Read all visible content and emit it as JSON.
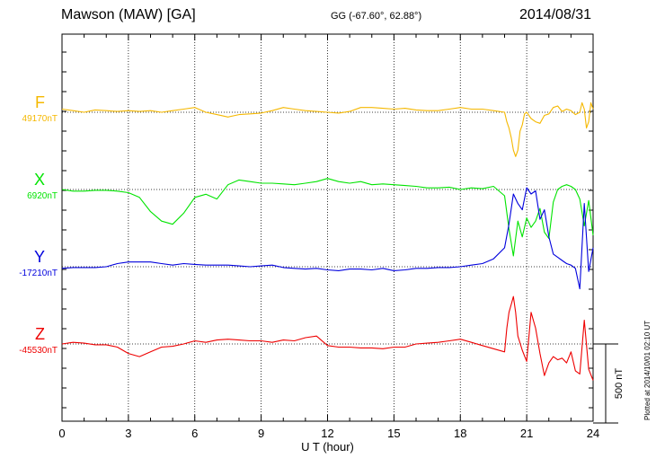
{
  "header": {
    "station": "Mawson (MAW)  [GA]",
    "coords": "GG (-67.60°,  62.88°)",
    "date": "2014/08/31"
  },
  "plotted_note": "Plotted at 2014/10/01 02:10 UT",
  "chart_data": {
    "type": "line",
    "title": "Mawson (MAW)  [GA]",
    "xlabel": "U T (hour)",
    "xlim": [
      0,
      24
    ],
    "xticks": [
      "0",
      "3",
      "6",
      "9",
      "12",
      "15",
      "18",
      "21",
      "24"
    ],
    "scale_bar_label": "500 nT",
    "scale_bar_nT": 500,
    "grid": true,
    "series": [
      {
        "name": "F",
        "baseline_label": "49170nT",
        "baseline_nT": 49170,
        "color": "#f5b800",
        "unit": "nT deviation from baseline",
        "x": [
          0,
          0.5,
          1,
          1.5,
          2,
          2.5,
          3,
          3.5,
          4,
          4.5,
          5,
          5.5,
          6,
          6.5,
          7,
          7.5,
          8,
          8.5,
          9,
          9.5,
          10,
          10.5,
          11,
          11.5,
          12,
          12.5,
          13,
          13.5,
          14,
          14.5,
          15,
          15.5,
          16,
          16.5,
          17,
          17.5,
          18,
          18.5,
          19,
          19.5,
          20,
          20.1,
          20.2,
          20.3,
          20.4,
          20.5,
          20.6,
          20.7,
          20.8,
          20.9,
          21,
          21.2,
          21.4,
          21.6,
          21.8,
          22,
          22.2,
          22.4,
          22.6,
          22.8,
          23,
          23.2,
          23.4,
          23.5,
          23.6,
          23.7,
          23.8,
          23.9,
          24
        ],
        "y": [
          20,
          10,
          0,
          15,
          10,
          5,
          10,
          5,
          10,
          0,
          10,
          20,
          30,
          0,
          -15,
          -30,
          -15,
          -10,
          -5,
          10,
          30,
          20,
          10,
          5,
          0,
          -5,
          5,
          30,
          30,
          25,
          20,
          25,
          15,
          10,
          10,
          20,
          30,
          20,
          20,
          10,
          0,
          -60,
          -100,
          -160,
          -240,
          -280,
          -240,
          -120,
          -80,
          -10,
          0,
          -40,
          -60,
          -70,
          -20,
          -10,
          30,
          40,
          5,
          20,
          10,
          -15,
          0,
          60,
          20,
          -100,
          -60,
          60,
          20
        ]
      },
      {
        "name": "X",
        "baseline_label": "6920nT",
        "baseline_nT": 6920,
        "color": "#00e400",
        "unit": "nT deviation from baseline",
        "x": [
          0,
          0.5,
          1,
          1.5,
          2,
          2.5,
          3,
          3.5,
          4,
          4.5,
          5,
          5.5,
          6,
          6.5,
          7,
          7.5,
          8,
          8.5,
          9,
          9.5,
          10,
          10.5,
          11,
          11.5,
          12,
          12.5,
          13,
          13.5,
          14,
          14.5,
          15,
          15.5,
          16,
          16.5,
          17,
          17.5,
          18,
          18.5,
          19,
          19.5,
          20,
          20.2,
          20.4,
          20.6,
          20.8,
          21,
          21.2,
          21.4,
          21.6,
          21.8,
          22,
          22.2,
          22.4,
          22.6,
          22.8,
          23,
          23.2,
          23.4,
          23.6,
          23.8,
          24
        ],
        "y": [
          0,
          -10,
          -10,
          -5,
          -5,
          -10,
          -20,
          -50,
          -140,
          -200,
          -220,
          -150,
          -50,
          -30,
          -60,
          30,
          60,
          50,
          40,
          40,
          35,
          30,
          40,
          50,
          70,
          50,
          40,
          50,
          30,
          35,
          30,
          25,
          20,
          10,
          10,
          15,
          0,
          10,
          5,
          20,
          -40,
          -250,
          -420,
          -200,
          -300,
          -180,
          -240,
          -200,
          -120,
          -270,
          -310,
          -80,
          0,
          20,
          30,
          20,
          0,
          -60,
          -230,
          -70,
          -290
        ]
      },
      {
        "name": "Y",
        "baseline_label": "-17210nT",
        "baseline_nT": -17210,
        "color": "#0000dd",
        "unit": "nT deviation from baseline",
        "x": [
          0,
          0.5,
          1,
          1.5,
          2,
          2.5,
          3,
          3.5,
          4,
          4.5,
          5,
          5.5,
          6,
          6.5,
          7,
          7.5,
          8,
          8.5,
          9,
          9.5,
          10,
          10.5,
          11,
          11.5,
          12,
          12.5,
          13,
          13.5,
          14,
          14.5,
          15,
          15.5,
          16,
          16.5,
          17,
          17.5,
          18,
          18.5,
          19,
          19.5,
          20,
          20.2,
          20.4,
          20.6,
          20.8,
          21,
          21.2,
          21.4,
          21.6,
          21.8,
          22,
          22.2,
          22.4,
          22.6,
          22.8,
          23,
          23.2,
          23.4,
          23.6,
          23.8,
          24
        ],
        "y": [
          -10,
          -5,
          -5,
          -5,
          0,
          20,
          30,
          30,
          30,
          20,
          10,
          20,
          15,
          10,
          10,
          10,
          5,
          0,
          5,
          10,
          -5,
          -10,
          -15,
          -10,
          -20,
          -25,
          -15,
          -15,
          -20,
          -10,
          -25,
          -20,
          -10,
          -10,
          -5,
          -5,
          0,
          10,
          20,
          50,
          120,
          270,
          460,
          400,
          360,
          500,
          460,
          480,
          300,
          360,
          190,
          80,
          60,
          40,
          20,
          10,
          -10,
          -140,
          400,
          -30,
          120
        ]
      },
      {
        "name": "Z",
        "baseline_label": "-45530nT",
        "baseline_nT": -45530,
        "color": "#ee0000",
        "unit": "nT deviation from baseline",
        "x": [
          0,
          0.5,
          1,
          1.5,
          2,
          2.5,
          3,
          3.5,
          4,
          4.5,
          5,
          5.5,
          6,
          6.5,
          7,
          7.5,
          8,
          8.5,
          9,
          9.5,
          10,
          10.5,
          11,
          11.5,
          12,
          12.5,
          13,
          13.5,
          14,
          14.5,
          15,
          15.5,
          16,
          16.5,
          17,
          17.5,
          18,
          18.5,
          19,
          19.5,
          20,
          20.1,
          20.2,
          20.3,
          20.4,
          20.5,
          20.6,
          20.8,
          21,
          21.2,
          21.4,
          21.6,
          21.8,
          22,
          22.2,
          22.4,
          22.6,
          22.8,
          23,
          23.2,
          23.4,
          23.6,
          23.8,
          24
        ],
        "y": [
          0,
          10,
          5,
          -5,
          -5,
          -20,
          -60,
          -80,
          -50,
          -20,
          -15,
          0,
          20,
          10,
          25,
          30,
          25,
          20,
          20,
          10,
          25,
          20,
          40,
          50,
          -10,
          -20,
          -20,
          -25,
          -25,
          -30,
          -20,
          -20,
          0,
          5,
          10,
          20,
          30,
          10,
          -10,
          -30,
          -50,
          100,
          200,
          250,
          300,
          200,
          50,
          -40,
          -110,
          200,
          100,
          -60,
          -200,
          -120,
          -80,
          -100,
          -90,
          -120,
          -50,
          -170,
          -190,
          150,
          -160,
          -230
        ]
      }
    ]
  }
}
